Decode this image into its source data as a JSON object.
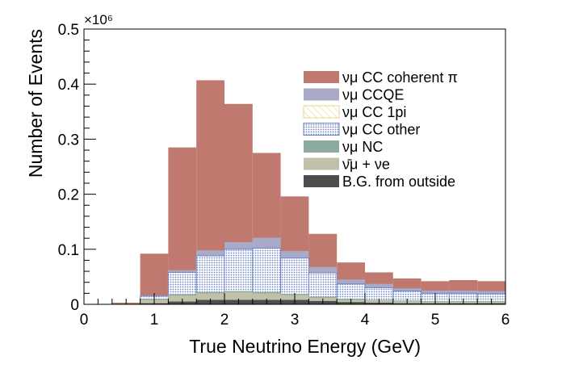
{
  "chart_data": {
    "type": "bar",
    "stacked": true,
    "xlabel": "True Neutrino Energy (GeV)",
    "ylabel": "Number of Events",
    "y_multiplier": "×10⁶",
    "xlim": [
      0,
      6
    ],
    "ylim": [
      0,
      0.5
    ],
    "xticks": [
      0,
      1,
      2,
      3,
      4,
      5,
      6
    ],
    "xtick_labels": [
      "0",
      "1",
      "2",
      "3",
      "4",
      "5",
      "6"
    ],
    "yticks": [
      0,
      0.1,
      0.2,
      0.3,
      0.4,
      0.5
    ],
    "ytick_labels": [
      "0",
      "0.1",
      "0.2",
      "0.3",
      "0.4",
      "0.5"
    ],
    "bin_edges": [
      0,
      0.4,
      0.8,
      1.2,
      1.6,
      2.0,
      2.4,
      2.8,
      3.2,
      3.6,
      4.0,
      4.4,
      4.8,
      5.2,
      5.6,
      6.0
    ],
    "stack_cumulative_tops": {
      "bg_outside": [
        0,
        0,
        0.002,
        0.005,
        0.008,
        0.008,
        0.008,
        0.008,
        0.006,
        0.004,
        0.003,
        0.002,
        0.002,
        0.002,
        0.002
      ],
      "numubar_nue": [
        0,
        0,
        0.008,
        0.016,
        0.02,
        0.022,
        0.02,
        0.017,
        0.012,
        0.008,
        0.007,
        0.006,
        0.005,
        0.005,
        0.005
      ],
      "numu_nc": [
        0,
        0,
        0.01,
        0.018,
        0.022,
        0.024,
        0.022,
        0.019,
        0.014,
        0.01,
        0.008,
        0.007,
        0.006,
        0.006,
        0.006
      ],
      "numu_cc_other": [
        0,
        0,
        0.015,
        0.058,
        0.088,
        0.1,
        0.102,
        0.084,
        0.057,
        0.037,
        0.03,
        0.024,
        0.02,
        0.02,
        0.019
      ],
      "numu_cc_1pi": [
        0,
        0,
        0.015,
        0.058,
        0.085,
        0.093,
        0.092,
        0.077,
        0.053,
        0.034,
        0.027,
        0.022,
        0.019,
        0.018,
        0.018
      ],
      "numu_ccqe": [
        0,
        0,
        0.016,
        0.062,
        0.098,
        0.113,
        0.121,
        0.097,
        0.068,
        0.045,
        0.037,
        0.029,
        0.025,
        0.025,
        0.024
      ],
      "numu_cc_coh_pi": [
        0,
        0.003,
        0.092,
        0.285,
        0.407,
        0.364,
        0.275,
        0.196,
        0.128,
        0.076,
        0.058,
        0.047,
        0.042,
        0.044,
        0.042
      ]
    },
    "draw_order": [
      "numu_cc_coh_pi",
      "numu_ccqe",
      "numu_cc_1pi",
      "numu_cc_other",
      "numu_nc",
      "numubar_nue",
      "bg_outside"
    ],
    "series": [
      {
        "key": "numu_cc_coh_pi",
        "name": "νμ CC coherent π",
        "color": "#c0796f",
        "style": "solid"
      },
      {
        "key": "numu_ccqe",
        "name": "νμ CCQE",
        "color": "#a9a9c8",
        "style": "solid"
      },
      {
        "key": "numu_cc_1pi",
        "name": "νμ CC 1pi",
        "color": "#e6d68a",
        "style": "hatch"
      },
      {
        "key": "numu_cc_other",
        "name": "νμ CC other",
        "color": "#6f86c9",
        "style": "dots"
      },
      {
        "key": "numu_nc",
        "name": "νμ NC",
        "color": "#8bab9e",
        "style": "solid"
      },
      {
        "key": "numubar_nue",
        "name": "ν̄μ + νe",
        "color": "#c2c0a8",
        "style": "solid"
      },
      {
        "key": "bg_outside",
        "name": "B.G. from outside",
        "color": "#4d4d4d",
        "style": "solid"
      }
    ],
    "legend_position": "top-right"
  }
}
